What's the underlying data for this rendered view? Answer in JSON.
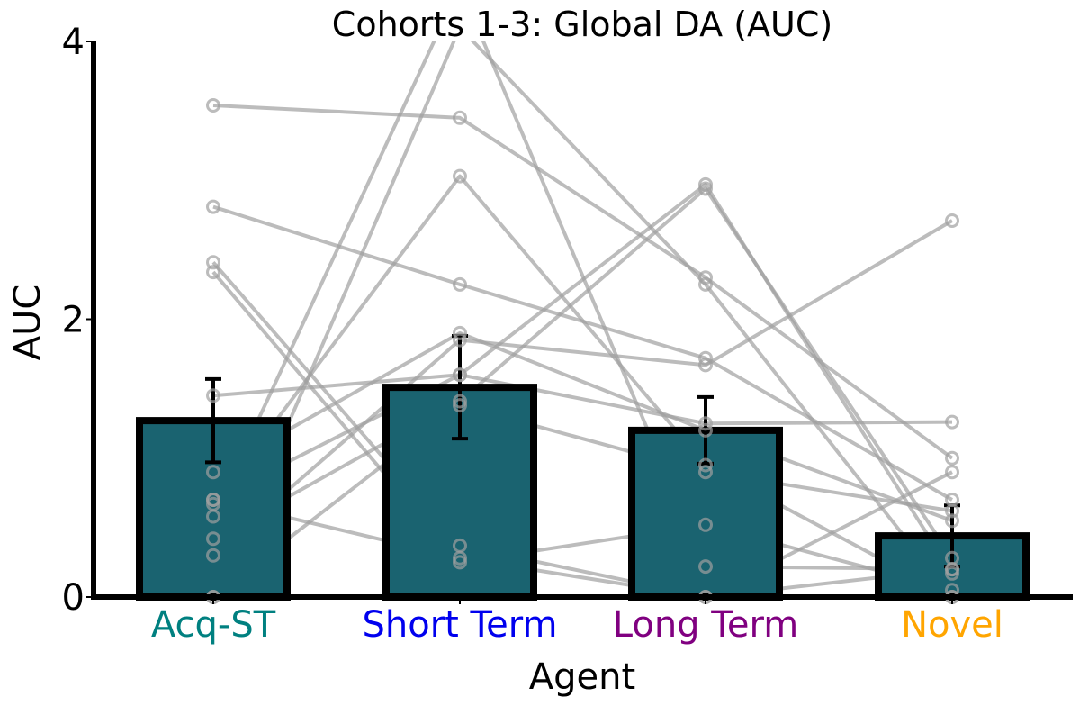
{
  "chart_data": {
    "type": "bar",
    "title": "Cohorts 1-3: Global DA (AUC)",
    "xlabel": "Agent",
    "ylabel": "AUC",
    "ylim": [
      0,
      4
    ],
    "yticks": [
      0,
      2,
      4
    ],
    "categories": [
      "Acq-ST",
      "Short Term",
      "Long Term",
      "Novel"
    ],
    "category_colors": [
      "#008080",
      "#0000ee",
      "#800080",
      "#ffa500"
    ],
    "bar_color": "#1a6370",
    "bar_edge_color": "#000000",
    "line_color": "#a0a0a0",
    "values": [
      1.27,
      1.51,
      1.2,
      0.44
    ],
    "errors": [
      0.3,
      0.37,
      0.24,
      0.22
    ],
    "subjects": [
      [
        3.54,
        3.45,
        2.3,
        1.0
      ],
      [
        2.81,
        2.25,
        1.72,
        0.7
      ],
      [
        2.41,
        0.37,
        0.0,
        0.2
      ],
      [
        2.34,
        0.25,
        0.52,
        0.05
      ],
      [
        1.45,
        1.6,
        1.25,
        1.26
      ],
      [
        0.9,
        1.9,
        1.2,
        0.55
      ],
      [
        0.67,
        3.03,
        0.95,
        0.0
      ],
      [
        0.58,
        4.4,
        0.22,
        0.2
      ],
      [
        0.42,
        1.41,
        2.94,
        0.28
      ],
      [
        0.3,
        1.85,
        1.67,
        2.71
      ],
      [
        0.0,
        4.1,
        2.25,
        0.0
      ],
      [
        0.7,
        0.28,
        0.0,
        0.9
      ],
      [
        0.0,
        1.38,
        0.9,
        0.62
      ],
      [
        0.7,
        1.6,
        2.97,
        0.17
      ]
    ],
    "grid": false,
    "legend": "none"
  }
}
